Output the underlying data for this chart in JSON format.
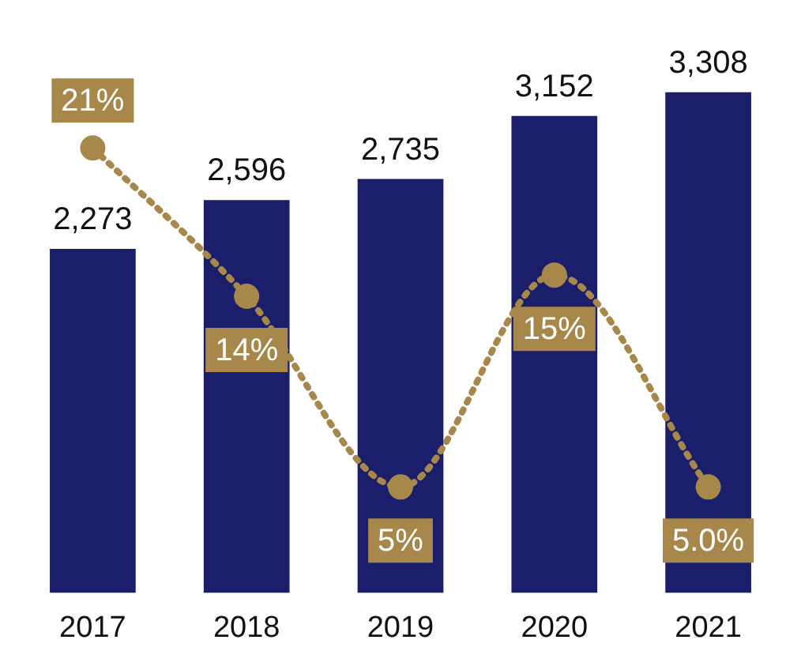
{
  "chart_data": {
    "type": "bar",
    "categories": [
      "2017",
      "2018",
      "2019",
      "2020",
      "2021"
    ],
    "series": [
      {
        "color": "#1b1f6b",
        "values": [
          2273,
          2596,
          2735,
          3152,
          3308
        ],
        "value_labels": [
          "2,273",
          "2,596",
          "2,735",
          "3,152",
          "3,308"
        ]
      },
      {
        "type": "line",
        "axis": "y2",
        "color": "#a8874a",
        "values": [
          21,
          14,
          5,
          15,
          5.0
        ],
        "value_labels": [
          "21%",
          "14%",
          "5%",
          "15%",
          "5.0%"
        ],
        "marker": "circle",
        "line_style": "dotted"
      }
    ],
    "grid": false,
    "legend": false,
    "tick_labels": "x"
  }
}
